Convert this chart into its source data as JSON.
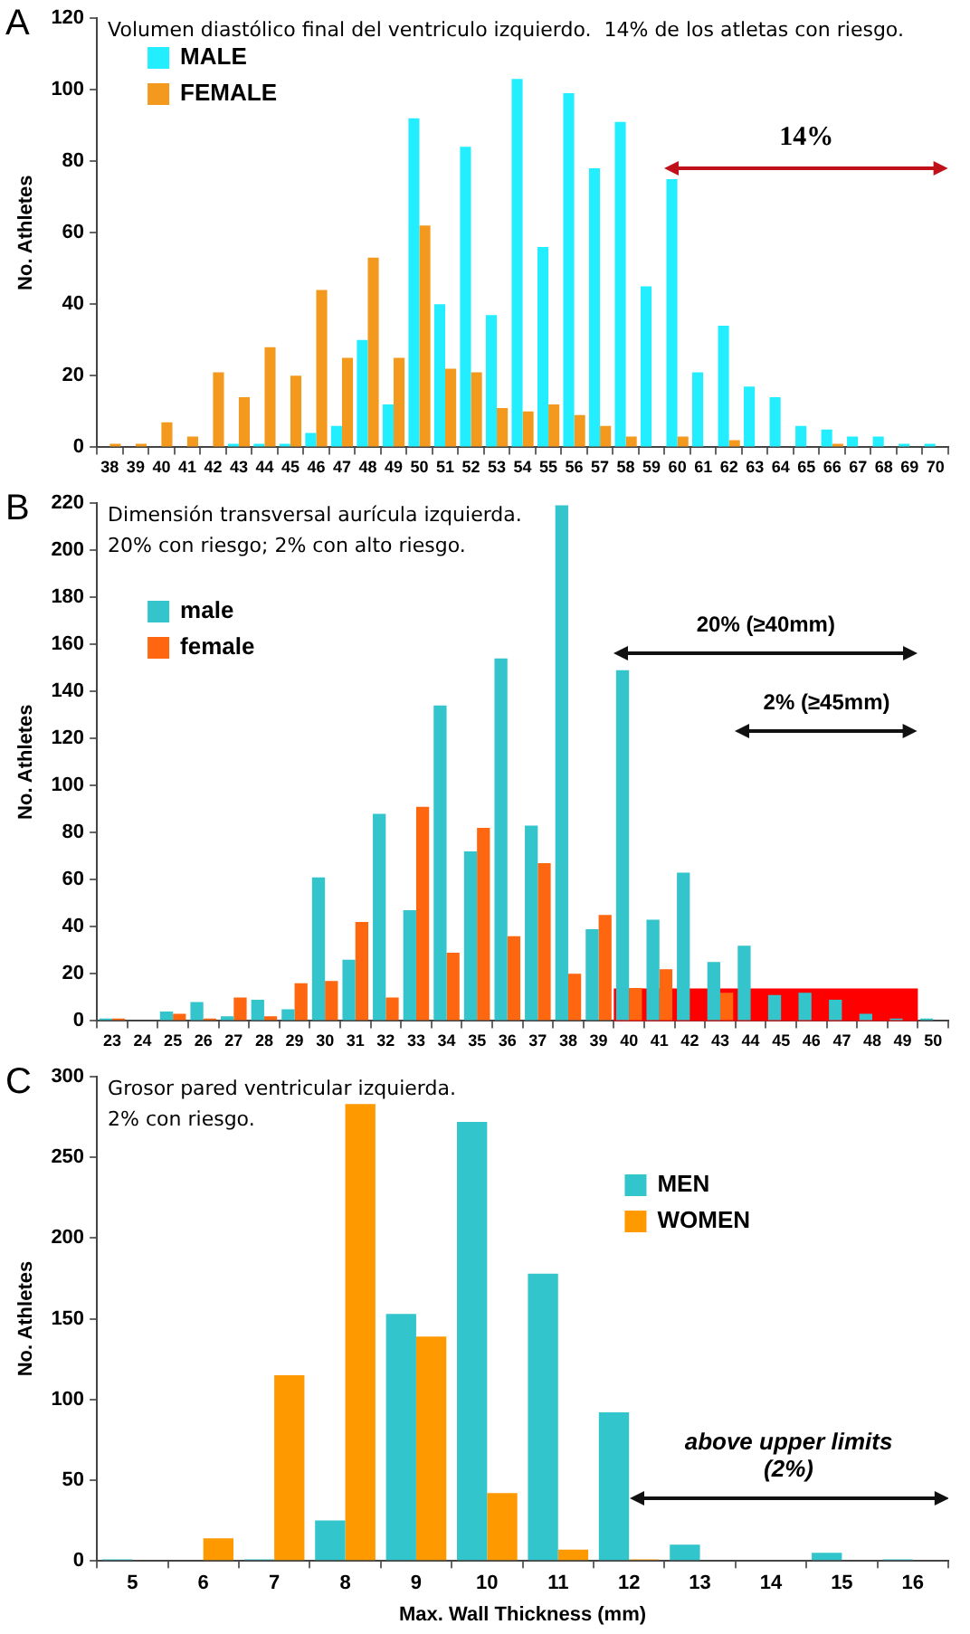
{
  "chart_data": [
    {
      "type": "bar",
      "title": "Volumen diastólico final del ventriculo izquierdo.  14% de los atletas con riesgo.",
      "ylabel": "No. Athletes",
      "categories": [
        "38",
        "39",
        "40",
        "41",
        "42",
        "43",
        "44",
        "45",
        "46",
        "47",
        "48",
        "49",
        "50",
        "51",
        "52",
        "53",
        "54",
        "55",
        "56",
        "57",
        "58",
        "59",
        "60",
        "61",
        "62",
        "63",
        "64",
        "65",
        "66",
        "67",
        "68",
        "69",
        "70"
      ],
      "series": [
        {
          "name": "MALE",
          "color": "#22eeff",
          "values": [
            0,
            0,
            0,
            0,
            0,
            1,
            1,
            1,
            4,
            6,
            30,
            12,
            92,
            40,
            84,
            37,
            103,
            56,
            99,
            78,
            91,
            45,
            75,
            21,
            34,
            17,
            14,
            6,
            5,
            3,
            3,
            1,
            1
          ]
        },
        {
          "name": "FEMALE",
          "color": "#f39a1e",
          "values": [
            1,
            1,
            7,
            3,
            21,
            14,
            28,
            20,
            44,
            25,
            53,
            25,
            62,
            22,
            21,
            11,
            10,
            12,
            9,
            6,
            3,
            0,
            3,
            0,
            2,
            0,
            0,
            0,
            1,
            0,
            0,
            0,
            0
          ]
        }
      ],
      "ylim": [
        0,
        120
      ],
      "yticks": [
        0,
        20,
        40,
        60,
        80,
        100,
        120
      ],
      "grid": false,
      "legend": "top left",
      "annotations": [
        "A",
        "14%"
      ]
    },
    {
      "type": "bar",
      "title": "Dimensión transversal aurícula izquierda.",
      "subtitle": "20% con riesgo; 2% con alto riesgo.",
      "ylabel": "No. Athletes",
      "categories": [
        "23",
        "24",
        "25",
        "26",
        "27",
        "28",
        "29",
        "30",
        "31",
        "32",
        "33",
        "34",
        "35",
        "36",
        "37",
        "38",
        "39",
        "40",
        "41",
        "42",
        "43",
        "44",
        "45",
        "46",
        "47",
        "48",
        "49",
        "50"
      ],
      "series": [
        {
          "name": "male",
          "color": "#33c4cc",
          "values": [
            1,
            0,
            4,
            8,
            2,
            9,
            5,
            61,
            26,
            88,
            47,
            134,
            72,
            154,
            83,
            219,
            39,
            149,
            43,
            63,
            25,
            32,
            11,
            12,
            9,
            3,
            1,
            1
          ]
        },
        {
          "name": "female",
          "color": "#ff6610",
          "values": [
            1,
            0,
            3,
            1,
            10,
            2,
            16,
            17,
            42,
            10,
            91,
            29,
            82,
            36,
            67,
            20,
            45,
            14,
            22,
            null,
            12,
            null,
            null,
            null,
            null,
            null,
            null,
            null
          ]
        }
      ],
      "ylim": [
        0,
        220
      ],
      "yticks": [
        0,
        20,
        40,
        60,
        80,
        100,
        120,
        140,
        160,
        180,
        200,
        220
      ],
      "grid": false,
      "legend": "top left",
      "bands": [
        {
          "axis": "x",
          "from": "40",
          "to": "49",
          "color": "#ff0000"
        }
      ],
      "annotations": [
        "B",
        "20% (≥40mm)",
        "2% (≥45mm)"
      ]
    },
    {
      "type": "bar",
      "title": "Grosor pared ventricular izquierda.",
      "subtitle": "2% con riesgo.",
      "xlabel": "Max. Wall Thickness (mm)",
      "ylabel": "No. Athletes",
      "categories": [
        "5",
        "6",
        "7",
        "8",
        "9",
        "10",
        "11",
        "12",
        "13",
        "14",
        "15",
        "16"
      ],
      "series": [
        {
          "name": "MEN",
          "color": "#33c5cc",
          "values": [
            1,
            0,
            1,
            25,
            153,
            272,
            178,
            92,
            10,
            0,
            5,
            1
          ]
        },
        {
          "name": "WOMEN",
          "color": "#ff9900",
          "values": [
            0,
            14,
            115,
            283,
            139,
            42,
            7,
            1,
            0,
            0,
            0,
            0
          ]
        }
      ],
      "ylim": [
        0,
        300
      ],
      "yticks": [
        0,
        50,
        100,
        150,
        200,
        250,
        300
      ],
      "grid": false,
      "legend": "top right",
      "annotations": [
        "C",
        "above upper limits (2%)"
      ]
    }
  ]
}
